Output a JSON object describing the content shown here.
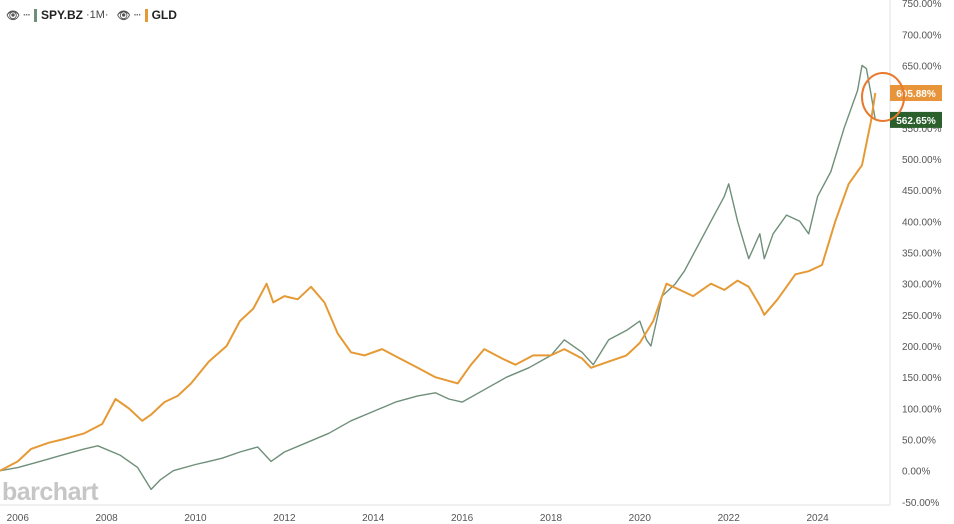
{
  "legend": {
    "series1": {
      "symbol": "SPY.BZ",
      "interval": "·1M·",
      "eye_icon": "eye-icon",
      "menu_icon": "ellipsis-icon"
    },
    "series2": {
      "symbol": "GLD",
      "eye_icon": "eye-icon",
      "menu_icon": "ellipsis-icon"
    }
  },
  "watermark": "barchart",
  "colors": {
    "spy": "#6f8f7a",
    "gld": "#e59a35",
    "spy_badge": "#2b5f2b",
    "gld_badge": "#e8943a",
    "circle": "#e8792e"
  },
  "chart_data": {
    "type": "line",
    "xlabel": "",
    "ylabel": "",
    "y_unit": "%",
    "xlim": [
      2005.6,
      2025.45
    ],
    "ylim": [
      -55,
      755
    ],
    "x_ticks": [
      "2006",
      "2008",
      "2010",
      "2012",
      "2014",
      "2016",
      "2018",
      "2020",
      "2022",
      "2024"
    ],
    "y_ticks": [
      "750.00%",
      "700.00%",
      "650.00%",
      "600.00%",
      "550.00%",
      "500.00%",
      "450.00%",
      "400.00%",
      "350.00%",
      "300.00%",
      "250.00%",
      "200.00%",
      "150.00%",
      "100.00%",
      "50.00%",
      "0.00%",
      "-50.00%"
    ],
    "y_tick_values": [
      750,
      700,
      650,
      600,
      550,
      500,
      450,
      400,
      350,
      300,
      250,
      200,
      150,
      100,
      50,
      0,
      -50
    ],
    "grid": false,
    "legend_position": "top-left",
    "series": [
      {
        "name": "SPY.BZ",
        "last_value_label": "562.65%",
        "last_value": 562.65,
        "x": [
          2005.6,
          2006.0,
          2006.5,
          2007.0,
          2007.5,
          2007.8,
          2008.3,
          2008.7,
          2009.0,
          2009.2,
          2009.5,
          2010.0,
          2010.3,
          2010.6,
          2011.0,
          2011.4,
          2011.7,
          2012.0,
          2012.5,
          2013.0,
          2013.5,
          2014.0,
          2014.5,
          2015.0,
          2015.4,
          2015.7,
          2016.0,
          2016.5,
          2017.0,
          2017.5,
          2018.0,
          2018.3,
          2018.7,
          2018.95,
          2019.3,
          2019.7,
          2020.0,
          2020.15,
          2020.25,
          2020.5,
          2020.8,
          2021.0,
          2021.3,
          2021.6,
          2021.9,
          2022.0,
          2022.2,
          2022.45,
          2022.7,
          2022.8,
          2023.0,
          2023.3,
          2023.6,
          2023.8,
          2024.0,
          2024.3,
          2024.6,
          2024.9,
          2025.0,
          2025.1,
          2025.2,
          2025.3
        ],
        "values": [
          0,
          5,
          15,
          25,
          35,
          40,
          25,
          5,
          -30,
          -15,
          0,
          10,
          15,
          20,
          30,
          38,
          15,
          30,
          45,
          60,
          80,
          95,
          110,
          120,
          125,
          115,
          110,
          130,
          150,
          165,
          185,
          210,
          190,
          170,
          210,
          225,
          240,
          210,
          200,
          280,
          300,
          320,
          360,
          400,
          440,
          460,
          400,
          340,
          380,
          340,
          380,
          410,
          400,
          380,
          440,
          480,
          550,
          610,
          650,
          645,
          605,
          562.65
        ]
      },
      {
        "name": "GLD",
        "last_value_label": "605.88%",
        "last_value": 605.88,
        "x": [
          2005.6,
          2006.0,
          2006.3,
          2006.7,
          2007.0,
          2007.5,
          2007.9,
          2008.2,
          2008.5,
          2008.8,
          2009.0,
          2009.3,
          2009.6,
          2009.9,
          2010.3,
          2010.7,
          2011.0,
          2011.3,
          2011.6,
          2011.75,
          2012.0,
          2012.3,
          2012.6,
          2012.9,
          2013.2,
          2013.5,
          2013.8,
          2014.2,
          2014.6,
          2015.0,
          2015.4,
          2015.9,
          2016.2,
          2016.5,
          2016.9,
          2017.2,
          2017.6,
          2018.0,
          2018.3,
          2018.7,
          2018.9,
          2019.3,
          2019.7,
          2020.0,
          2020.3,
          2020.6,
          2020.9,
          2021.2,
          2021.6,
          2021.9,
          2022.2,
          2022.45,
          2022.7,
          2022.8,
          2023.1,
          2023.5,
          2023.8,
          2024.1,
          2024.4,
          2024.7,
          2025.0,
          2025.2,
          2025.3
        ],
        "values": [
          0,
          15,
          35,
          45,
          50,
          60,
          75,
          115,
          100,
          80,
          90,
          110,
          120,
          140,
          175,
          200,
          240,
          260,
          300,
          270,
          280,
          275,
          295,
          270,
          220,
          190,
          185,
          195,
          180,
          165,
          150,
          140,
          170,
          195,
          180,
          170,
          185,
          185,
          195,
          180,
          165,
          175,
          185,
          205,
          240,
          300,
          290,
          280,
          300,
          290,
          305,
          295,
          265,
          250,
          275,
          315,
          320,
          330,
          400,
          460,
          490,
          560,
          605.88
        ]
      }
    ]
  }
}
